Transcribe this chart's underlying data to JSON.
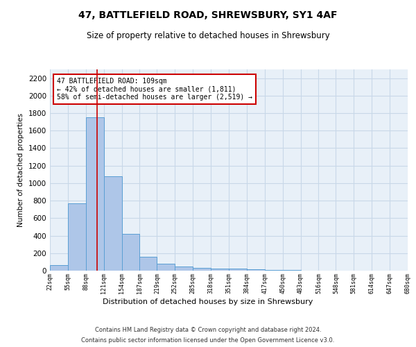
{
  "title1": "47, BATTLEFIELD ROAD, SHREWSBURY, SY1 4AF",
  "title2": "Size of property relative to detached houses in Shrewsbury",
  "xlabel": "Distribution of detached houses by size in Shrewsbury",
  "ylabel": "Number of detached properties",
  "bar_values": [
    60,
    770,
    1750,
    1075,
    420,
    160,
    80,
    45,
    30,
    25,
    20,
    15,
    8,
    5,
    3,
    2,
    1,
    1,
    0,
    0
  ],
  "bin_edges": [
    22,
    55,
    88,
    121,
    154,
    187,
    219,
    252,
    285,
    318,
    351,
    384,
    417,
    450,
    483,
    516,
    548,
    581,
    614,
    647,
    680
  ],
  "tick_labels": [
    "22sqm",
    "55sqm",
    "88sqm",
    "121sqm",
    "154sqm",
    "187sqm",
    "219sqm",
    "252sqm",
    "285sqm",
    "318sqm",
    "351sqm",
    "384sqm",
    "417sqm",
    "450sqm",
    "483sqm",
    "516sqm",
    "548sqm",
    "581sqm",
    "614sqm",
    "647sqm",
    "680sqm"
  ],
  "bar_color": "#aec6e8",
  "bar_edge_color": "#5a9fd4",
  "vline_x": 109,
  "vline_color": "#cc0000",
  "annotation_text": "47 BATTLEFIELD ROAD: 109sqm\n← 42% of detached houses are smaller (1,811)\n58% of semi-detached houses are larger (2,519) →",
  "annotation_box_color": "#ffffff",
  "annotation_box_edge_color": "#cc0000",
  "ylim": [
    0,
    2300
  ],
  "yticks": [
    0,
    200,
    400,
    600,
    800,
    1000,
    1200,
    1400,
    1600,
    1800,
    2000,
    2200
  ],
  "grid_color": "#c8d8e8",
  "bg_color": "#e8f0f8",
  "footer1": "Contains HM Land Registry data © Crown copyright and database right 2024.",
  "footer2": "Contains public sector information licensed under the Open Government Licence v3.0."
}
